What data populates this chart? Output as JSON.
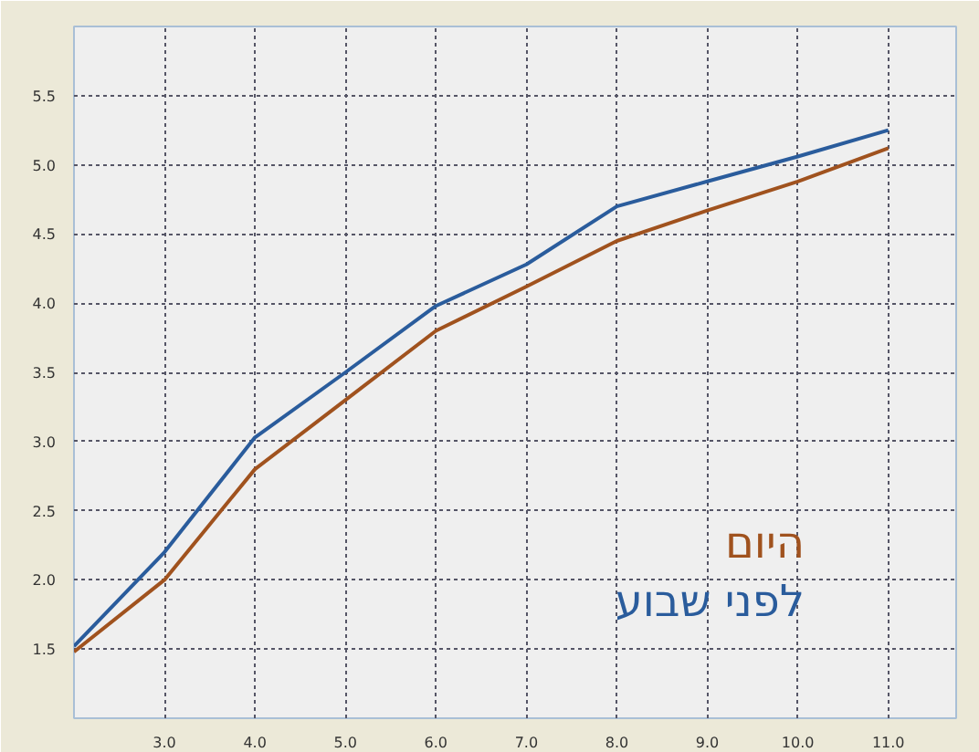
{
  "chart_data": {
    "type": "line",
    "x": [
      2,
      3,
      4,
      5,
      6,
      7,
      8,
      9,
      10,
      11
    ],
    "series": [
      {
        "name": "היום",
        "color": "#a0521e",
        "values": [
          1.48,
          2.0,
          2.8,
          3.3,
          3.8,
          4.12,
          4.45,
          4.67,
          4.88,
          5.12
        ]
      },
      {
        "name": "לפני שבוע",
        "color": "#2a5c9c",
        "values": [
          1.52,
          2.2,
          3.03,
          3.5,
          3.98,
          4.28,
          4.7,
          4.88,
          5.06,
          5.25
        ]
      }
    ],
    "xlim": [
      2,
      11.75
    ],
    "ylim": [
      1.0,
      6.0
    ],
    "xticks": [
      {
        "value": 3,
        "label": "3.0"
      },
      {
        "value": 4,
        "label": "4.0"
      },
      {
        "value": 5,
        "label": "5.0"
      },
      {
        "value": 6,
        "label": "6.0"
      },
      {
        "value": 7,
        "label": "7.0"
      },
      {
        "value": 8,
        "label": "8.0"
      },
      {
        "value": 9,
        "label": "9.0"
      },
      {
        "value": 10,
        "label": "10.0"
      },
      {
        "value": 11,
        "label": "11.0"
      }
    ],
    "yticks": [
      1.5,
      {
        "value": 2,
        "label": "2.0"
      },
      2.5,
      {
        "value": 3,
        "label": "3.0"
      },
      3.5,
      {
        "value": 4,
        "label": "4.0"
      },
      4.5,
      {
        "value": 5,
        "label": "5.0"
      },
      5.5
    ],
    "grid": true,
    "legend": "bottom right",
    "line_style": "solid"
  }
}
